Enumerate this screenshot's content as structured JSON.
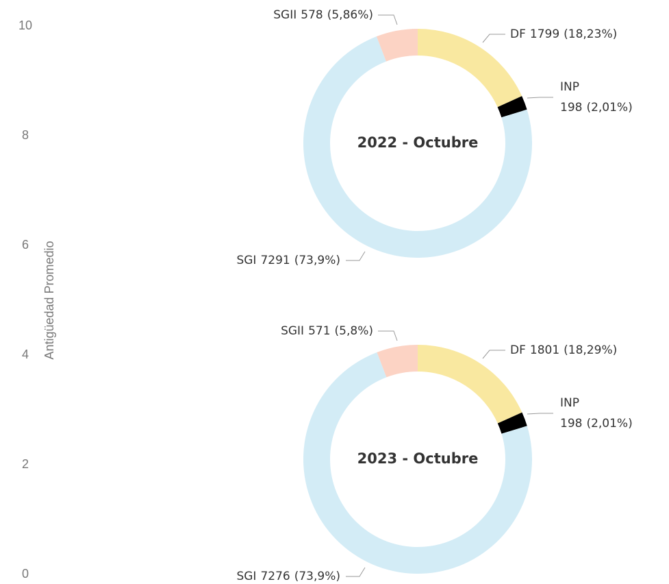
{
  "axis": {
    "label": "Antigüedad Promedio",
    "ylim": [
      0,
      10
    ],
    "yticks": [
      0,
      2,
      4,
      6,
      8,
      10
    ]
  },
  "chart_data": [
    {
      "type": "donut",
      "title": "2022 - Octubre",
      "categories": [
        "DF",
        "INP",
        "SGI",
        "SGII"
      ],
      "values": [
        1799,
        198,
        7291,
        578
      ],
      "percent_labels": [
        "(18,23%)",
        "(2,01%)",
        "(73,9%)",
        "(5,86%)"
      ],
      "colors": [
        "#f9e8a0",
        "#000000",
        "#d3ecf6",
        "#fcd3c4"
      ]
    },
    {
      "type": "donut",
      "title": "2023 - Octubre",
      "categories": [
        "DF",
        "INP",
        "SGI",
        "SGII"
      ],
      "values": [
        1801,
        198,
        7276,
        571
      ],
      "percent_labels": [
        "(18,29%)",
        "(2,01%)",
        "(73,9%)",
        "(5,8%)"
      ],
      "colors": [
        "#f9e8a0",
        "#000000",
        "#d3ecf6",
        "#fcd3c4"
      ]
    }
  ]
}
